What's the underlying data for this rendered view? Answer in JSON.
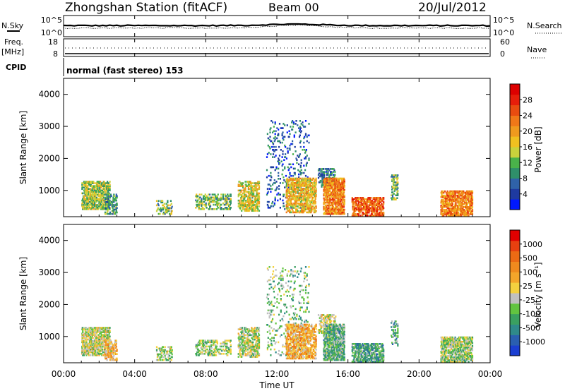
{
  "header": {
    "station": "Zhongshan Station (fitACF)",
    "beam": "Beam 00",
    "date": "20/Jul/2012"
  },
  "panels": {
    "nsky_label": "N.Sky",
    "nsky_ticks": [
      "10^5",
      "10^0"
    ],
    "nsearch_label": "N.Search",
    "nsearch_ticks": [
      "10^5",
      "10^0"
    ],
    "freq_label": "Freq.",
    "freq_unit": "[MHz]",
    "freq_ticks": [
      "18",
      "8"
    ],
    "nave_label": "Nave",
    "nave_ticks": [
      "60",
      "0"
    ],
    "cpid_label": "CPID",
    "cpid_text": "normal (fast stereo) 153"
  },
  "x_axis": {
    "label": "Time UT",
    "ticks": [
      "00:00",
      "04:00",
      "08:00",
      "12:00",
      "16:00",
      "20:00",
      "00:00"
    ]
  },
  "power_panel": {
    "ylabel": "Slant Range [km]",
    "yticks": [
      "4000",
      "3000",
      "2000",
      "1000"
    ],
    "colorbar_label": "Power [dB]",
    "colorbar_ticks": [
      "28",
      "24",
      "20",
      "16",
      "12",
      "8",
      "4"
    ],
    "colors": [
      "#0018ff",
      "#1e3aa0",
      "#2f62a8",
      "#2f8f6a",
      "#4ab24a",
      "#c8d23c",
      "#f0c020",
      "#f09a1e",
      "#f07818",
      "#e84c10",
      "#e61e0a",
      "#dd0000"
    ]
  },
  "velocity_panel": {
    "ylabel": "Slant Range [km]",
    "yticks": [
      "4000",
      "3000",
      "2000",
      "1000"
    ],
    "colorbar_label": "Velocity [m s⁻¹]",
    "colorbar_ticks": [
      "1000",
      "500",
      "100",
      "25",
      "-25",
      "-100",
      "-500",
      "-1000"
    ],
    "colors": [
      "#1b3fd1",
      "#2a5fb0",
      "#2f8a8a",
      "#3aa060",
      "#62c440",
      "#c0c0c0",
      "#f4d03f",
      "#f4a52a",
      "#f08a1e",
      "#ec6a14",
      "#e84010",
      "#e00000"
    ]
  },
  "chart_data": {
    "type": "heatmap",
    "x_range_hours": [
      0,
      24
    ],
    "y_range_km": [
      180,
      4500
    ],
    "freq_range_mhz": [
      8,
      18
    ],
    "nave_range": [
      0,
      60
    ],
    "clusters": [
      {
        "t0": 1.0,
        "t1": 2.6,
        "r0": 400,
        "r1": 1300,
        "density": 0.55,
        "power": 14,
        "velocity": -60
      },
      {
        "t0": 2.3,
        "t1": 3.0,
        "r0": 250,
        "r1": 900,
        "density": 0.4,
        "power": 10,
        "velocity": 200
      },
      {
        "t0": 5.2,
        "t1": 6.1,
        "r0": 250,
        "r1": 700,
        "density": 0.25,
        "power": 12,
        "velocity": -150
      },
      {
        "t0": 7.4,
        "t1": 9.4,
        "r0": 400,
        "r1": 900,
        "density": 0.35,
        "power": 12,
        "velocity": -200
      },
      {
        "t0": 9.8,
        "t1": 11.0,
        "r0": 350,
        "r1": 1300,
        "density": 0.45,
        "power": 16,
        "velocity": -120
      },
      {
        "t0": 11.4,
        "t1": 13.8,
        "r0": 400,
        "r1": 3200,
        "density": 0.08,
        "power": 6,
        "velocity": -300
      },
      {
        "t0": 12.5,
        "t1": 14.2,
        "r0": 300,
        "r1": 1400,
        "density": 0.5,
        "power": 18,
        "velocity": 300
      },
      {
        "t0": 14.3,
        "t1": 15.3,
        "r0": 1100,
        "r1": 1700,
        "density": 0.35,
        "power": 8,
        "velocity": 0
      },
      {
        "t0": 14.6,
        "t1": 15.8,
        "r0": 250,
        "r1": 1400,
        "density": 0.6,
        "power": 22,
        "velocity": -400
      },
      {
        "t0": 16.2,
        "t1": 18.0,
        "r0": 200,
        "r1": 800,
        "density": 0.55,
        "power": 24,
        "velocity": -450
      },
      {
        "t0": 18.4,
        "t1": 18.8,
        "r0": 700,
        "r1": 1500,
        "density": 0.35,
        "power": 12,
        "velocity": -500
      },
      {
        "t0": 21.2,
        "t1": 23.0,
        "r0": 200,
        "r1": 1000,
        "density": 0.6,
        "power": 22,
        "velocity": -200
      }
    ]
  }
}
